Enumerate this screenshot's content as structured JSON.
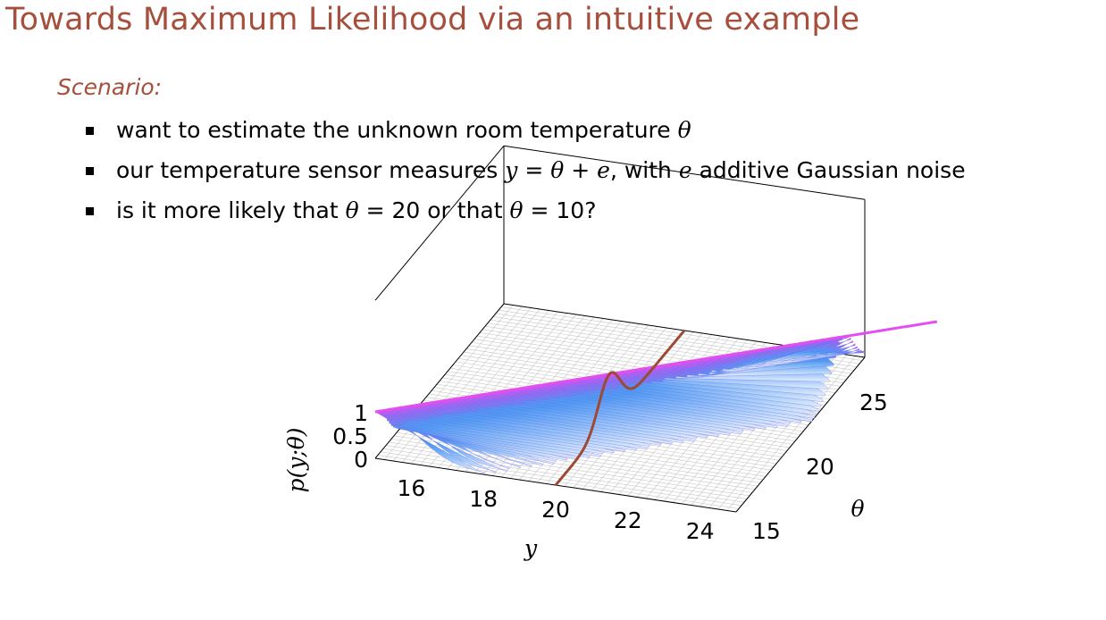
{
  "slide": {
    "title": "Towards Maximum Likelihood via an intuitive example",
    "scenario_label": "Scenario:",
    "bullets": [
      {
        "parts": [
          "want to estimate the unknown room temperature ",
          "θ"
        ]
      },
      {
        "parts": [
          "our temperature sensor measures ",
          "y",
          " = ",
          "θ",
          " + ",
          "e",
          ", with ",
          "e",
          " additive Gaussian noise"
        ]
      },
      {
        "parts": [
          "is it more likely that ",
          "θ",
          " = 20 or that ",
          "θ",
          " = 10?"
        ]
      }
    ]
  },
  "chart_data": {
    "type": "surface3d",
    "xlabel": "y",
    "ylabel": "θ",
    "zlabel": "p(y;θ)",
    "x_ticks": [
      "16",
      "18",
      "20",
      "22",
      "24"
    ],
    "y_ticks": [
      "15",
      "20",
      "25"
    ],
    "z_ticks": [
      "0",
      "0.5",
      "1"
    ],
    "xlim": [
      15,
      25
    ],
    "ylim": [
      15,
      27
    ],
    "zlim": [
      0,
      1
    ],
    "surface": "p(y;θ) = exp(-(y-θ)^2 / 2), Gaussian ridge along y = θ",
    "highlight_curve": "slice of the surface at y = 20",
    "highlight_y": 20,
    "colors": {
      "surface_low": "#dbe8fb",
      "surface_mid": "#3a8cf2",
      "surface_high": "#e44ef0",
      "highlight_curve": "#9c4a35",
      "grid": "#c8c8c8",
      "box": "#000000"
    }
  }
}
